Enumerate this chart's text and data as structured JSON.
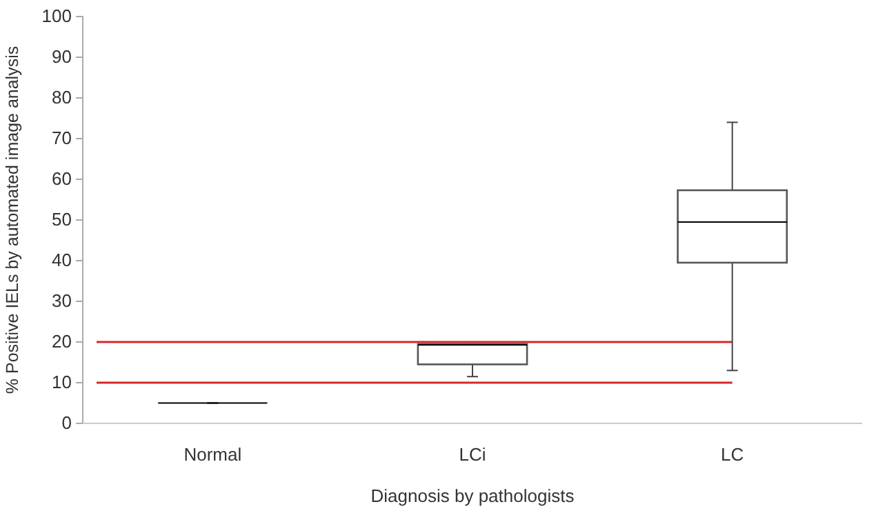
{
  "chart_data": {
    "type": "box",
    "xlabel": "Diagnosis by pathologists",
    "ylabel": "% Positive IELs by automated image analysis",
    "categories": [
      "Normal",
      "LCi",
      "LC"
    ],
    "boxes": [
      {
        "low": 5,
        "q1": 5,
        "median": 5,
        "q3": 5,
        "high": 5
      },
      {
        "low": 11.5,
        "q1": 14.5,
        "median": 19.3,
        "q3": 19.5,
        "high": 19.5
      },
      {
        "low": 13,
        "q1": 39.5,
        "median": 49.5,
        "q3": 57.3,
        "high": 74
      }
    ],
    "ylim": [
      0,
      100
    ],
    "yticks": [
      0,
      10,
      20,
      30,
      40,
      50,
      60,
      70,
      80,
      90,
      100
    ],
    "ref_lines": [
      {
        "axis": "y",
        "value": 20,
        "color": "#d62728"
      },
      {
        "axis": "y",
        "value": 10,
        "color": "#d62728"
      }
    ]
  }
}
